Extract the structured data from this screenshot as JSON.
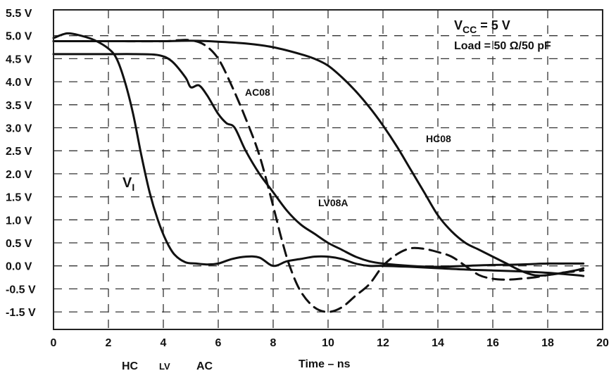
{
  "chart_data": {
    "type": "line",
    "title": "",
    "xlabel": "Time – ns",
    "ylabel": "",
    "xlim": [
      0,
      20
    ],
    "ylim": [
      -2.0,
      5.5
    ],
    "x_ticks": [
      0,
      2,
      4,
      6,
      8,
      10,
      12,
      14,
      16,
      18,
      20
    ],
    "x_tick_labels": [
      "0",
      "2",
      "4",
      "6",
      "8",
      "10",
      "12",
      "14",
      "16",
      "18",
      "20"
    ],
    "y_ticks": [
      5.5,
      5.0,
      4.5,
      4.0,
      3.5,
      3.0,
      2.5,
      2.0,
      1.5,
      1.0,
      0.5,
      0.0,
      -0.5,
      -1.5
    ],
    "y_tick_labels": [
      "5.5 V",
      "5.0 V",
      "4.5 V",
      "4.0 V",
      "3.5 V",
      "3.0 V",
      "2.5 V",
      "2.0 V",
      "1.5 V",
      "1.0 V",
      "0.5 V",
      "0.0 V",
      "-0.5 V",
      "-1.5 V"
    ],
    "grid": true,
    "conditions": {
      "vcc": "V",
      "vcc_sub": "CC",
      "vcc_value": " = 5 V",
      "load": "Load = 50 Ω/50 pF"
    },
    "bottom_labels": [
      "HC",
      "LV",
      "AC"
    ],
    "series": [
      {
        "name": "VI",
        "label_main": "V",
        "label_sub": "I",
        "style": "solid",
        "x": [
          0.0,
          0.5,
          1.0,
          1.5,
          2.0,
          2.3,
          2.6,
          2.9,
          3.2,
          3.5,
          3.8,
          4.1,
          4.4,
          4.8,
          5.2,
          5.6,
          6.0,
          6.5,
          7.0,
          7.5,
          8.0,
          8.5,
          9.0,
          9.5,
          10.0,
          10.5,
          11.0,
          11.5,
          12.0,
          13.0,
          14.0,
          15.0,
          16.0,
          17.0,
          18.0,
          19.0,
          19.3
        ],
        "values": [
          4.95,
          5.05,
          5.0,
          4.9,
          4.72,
          4.5,
          4.0,
          3.3,
          2.4,
          1.6,
          1.0,
          0.55,
          0.25,
          0.08,
          0.05,
          0.03,
          0.05,
          0.15,
          0.2,
          0.18,
          0.0,
          0.1,
          0.15,
          0.2,
          0.2,
          0.15,
          0.05,
          0.0,
          0.0,
          -0.02,
          -0.05,
          -0.08,
          -0.1,
          -0.12,
          -0.15,
          -0.2,
          -0.22
        ]
      },
      {
        "name": "HC08",
        "label": "HC08",
        "style": "solid",
        "x": [
          0.0,
          2.0,
          4.0,
          5.0,
          6.0,
          7.0,
          8.0,
          9.0,
          9.5,
          10.0,
          10.5,
          11.0,
          11.5,
          12.0,
          12.5,
          13.0,
          13.5,
          14.0,
          14.5,
          15.0,
          15.5,
          16.0,
          16.5,
          17.0,
          17.5,
          18.0,
          19.0,
          19.3
        ],
        "values": [
          4.88,
          4.88,
          4.88,
          4.89,
          4.87,
          4.83,
          4.75,
          4.6,
          4.5,
          4.35,
          4.1,
          3.8,
          3.45,
          3.05,
          2.6,
          2.1,
          1.6,
          1.1,
          0.75,
          0.5,
          0.35,
          0.2,
          0.05,
          -0.1,
          -0.2,
          -0.2,
          -0.1,
          -0.05
        ]
      },
      {
        "name": "LV08A",
        "label": "LV08A",
        "style": "solid",
        "x": [
          0.0,
          1.0,
          2.0,
          3.0,
          3.8,
          4.3,
          4.8,
          5.0,
          5.3,
          5.6,
          6.0,
          6.3,
          6.6,
          7.0,
          7.5,
          8.0,
          8.5,
          9.0,
          9.5,
          10.0,
          10.5,
          11.0,
          11.5,
          12.0,
          13.0,
          14.0,
          15.0,
          16.0,
          17.0,
          18.0,
          19.0,
          19.3
        ],
        "values": [
          4.6,
          4.6,
          4.6,
          4.6,
          4.58,
          4.45,
          4.1,
          3.88,
          3.92,
          3.7,
          3.3,
          3.1,
          3.0,
          2.5,
          2.0,
          1.6,
          1.2,
          0.9,
          0.7,
          0.5,
          0.35,
          0.2,
          0.1,
          0.05,
          0.0,
          -0.02,
          0.0,
          0.02,
          0.03,
          0.05,
          0.05,
          0.05
        ]
      },
      {
        "name": "AC08",
        "label": "AC08",
        "style": "dashed",
        "x": [
          0.0,
          2.0,
          4.0,
          4.5,
          5.0,
          5.5,
          6.0,
          6.5,
          7.0,
          7.5,
          8.0,
          8.3,
          8.6,
          9.0,
          9.5,
          10.0,
          10.5,
          11.0,
          11.5,
          12.0,
          12.5,
          13.0,
          13.5,
          14.0,
          14.5,
          15.0,
          15.5,
          16.0,
          16.5,
          17.0,
          17.5,
          18.0,
          18.5,
          19.0,
          19.3
        ],
        "values": [
          4.88,
          4.88,
          4.88,
          4.9,
          4.9,
          4.8,
          4.5,
          3.9,
          3.2,
          2.4,
          1.3,
          0.6,
          0.0,
          -0.6,
          -1.3,
          -1.5,
          -1.3,
          -0.8,
          -0.4,
          0.0,
          0.25,
          0.38,
          0.37,
          0.3,
          0.2,
          0.0,
          -0.2,
          -0.28,
          -0.3,
          -0.28,
          -0.25,
          -0.2,
          -0.15,
          -0.12,
          -0.1
        ]
      }
    ]
  }
}
